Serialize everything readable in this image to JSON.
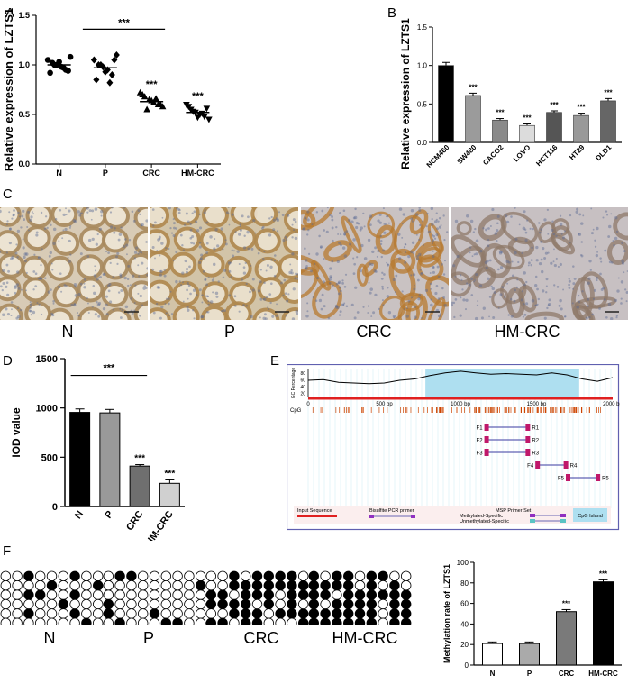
{
  "panels": {
    "A": "A",
    "B": "B",
    "C": "C",
    "D": "D",
    "E": "E",
    "F": "F"
  },
  "sig": "***",
  "micro_labels": [
    "N",
    "P",
    "CRC",
    "HM-CRC"
  ],
  "bisulfite_labels": [
    "N",
    "P",
    "CRC",
    "HM-CRC"
  ],
  "scale_bar": "100 μm",
  "colors": {
    "black": "#000000",
    "dark_gray": "#555555",
    "mid_gray": "#888888",
    "light_gray": "#cfcfcf",
    "cpg_island": "#aedff0",
    "cpg_tick": "#cc4400"
  },
  "chart_data": [
    {
      "panel": "A",
      "type": "scatter",
      "ylabel": "Relative expression of LZTS1",
      "categories": [
        "N",
        "P",
        "CRC",
        "HM-CRC"
      ],
      "ylim": [
        0,
        1.5
      ],
      "yticks": [
        "0.0",
        "0.5",
        "1.0",
        "1.5"
      ],
      "markers": [
        "circle",
        "diamond",
        "triangle-up",
        "triangle-down"
      ],
      "series": [
        {
          "values": [
            1.05,
            1.02,
            1.0,
            0.98,
            0.95,
            1.08,
            0.92,
            1.0,
            1.03,
            0.97,
            0.94
          ]
        },
        {
          "values": [
            1.05,
            1.0,
            0.98,
            0.95,
            0.9,
            1.1,
            0.85,
            1.0,
            0.93,
            0.82,
            1.05
          ]
        },
        {
          "values": [
            0.72,
            0.68,
            0.65,
            0.62,
            0.6,
            0.58,
            0.7,
            0.55,
            0.64,
            0.66,
            0.6
          ]
        },
        {
          "values": [
            0.6,
            0.55,
            0.52,
            0.5,
            0.48,
            0.45,
            0.58,
            0.53,
            0.47,
            0.51,
            0.56
          ]
        }
      ],
      "mean": [
        1.0,
        0.97,
        0.63,
        0.52
      ],
      "bracket": [
        "N",
        "CRC"
      ]
    },
    {
      "panel": "B",
      "type": "bar",
      "ylabel": "Relative expression of LZTS1",
      "categories": [
        "NCM460",
        "SW480",
        "CACO2",
        "LOVO",
        "HCT116",
        "HT29",
        "DLD1"
      ],
      "values": [
        1.0,
        0.61,
        0.29,
        0.22,
        0.39,
        0.35,
        0.54
      ],
      "errors": [
        0.04,
        0.03,
        0.02,
        0.02,
        0.02,
        0.03,
        0.03
      ],
      "ylim": [
        0,
        1.5
      ],
      "yticks": [
        "0.0",
        "0.5",
        "1.0",
        "1.5"
      ]
    },
    {
      "panel": "D",
      "type": "bar",
      "ylabel": "IOD value",
      "categories": [
        "N",
        "P",
        "CRC",
        "HM-CRC"
      ],
      "values": [
        955,
        950,
        410,
        235
      ],
      "errors": [
        35,
        35,
        15,
        35
      ],
      "ylim": [
        0,
        1500
      ],
      "yticks": [
        "0",
        "500",
        "1000",
        "1500"
      ],
      "bracket": [
        "N",
        "CRC"
      ]
    },
    {
      "panel": "E",
      "type": "area",
      "ylabel": "GC Percentage",
      "yticks": [
        "20",
        "40",
        "60",
        "80"
      ],
      "xticks": [
        "0",
        "500 bp",
        "1000 bp",
        "1500 bp",
        "2000 bp"
      ],
      "xlim": [
        0,
        2000
      ],
      "cpg_label": "CpG",
      "cpg_island": [
        770,
        1780
      ],
      "gc_profile": [
        [
          0,
          58
        ],
        [
          100,
          60
        ],
        [
          200,
          52
        ],
        [
          300,
          50
        ],
        [
          400,
          48
        ],
        [
          500,
          50
        ],
        [
          600,
          58
        ],
        [
          700,
          62
        ],
        [
          800,
          72
        ],
        [
          900,
          80
        ],
        [
          1000,
          85
        ],
        [
          1100,
          80
        ],
        [
          1200,
          76
        ],
        [
          1300,
          78
        ],
        [
          1400,
          76
        ],
        [
          1500,
          74
        ],
        [
          1600,
          80
        ],
        [
          1700,
          74
        ],
        [
          1800,
          62
        ],
        [
          1900,
          55
        ],
        [
          2000,
          66
        ]
      ],
      "primers": [
        {
          "f": "F1",
          "r": "R1",
          "start": 1175,
          "end": 1440
        },
        {
          "f": "F2",
          "r": "R2",
          "start": 1175,
          "end": 1440
        },
        {
          "f": "F3",
          "r": "R3",
          "start": 1175,
          "end": 1440
        },
        {
          "f": "F4",
          "r": "R4",
          "start": 1510,
          "end": 1690
        },
        {
          "f": "F5",
          "r": "R5",
          "start": 1710,
          "end": 1900
        }
      ],
      "legend": {
        "input": "Input Sequence",
        "bisulfite": "Bisulfite PCR primer",
        "msp": "MSP Primer Set",
        "methylated": "Methylated-Specific",
        "unmethylated": "Unmethylated-Specific",
        "cpg": "CpG Island"
      }
    },
    {
      "panel": "F",
      "type": "bar",
      "ylabel": "Methylation rate of LZTS1",
      "categories": [
        "N",
        "P",
        "CRC",
        "HM-CRC"
      ],
      "values": [
        21,
        21,
        52,
        81
      ],
      "errors": [
        1.5,
        1.5,
        2,
        2
      ],
      "ylim": [
        0,
        100
      ],
      "yticks": [
        "0",
        "20",
        "40",
        "60",
        "80",
        "100"
      ]
    }
  ]
}
